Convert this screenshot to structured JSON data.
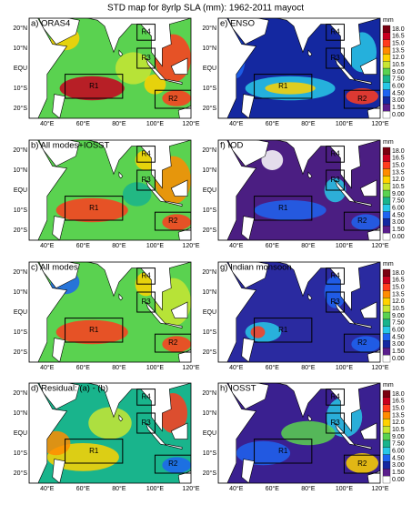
{
  "title": "STD map for 8yrlp SLA (mm): 1962-2011 mayoct",
  "panels": [
    {
      "label": "a) ORAS4"
    },
    {
      "label": "e) ENSO"
    },
    {
      "label": "b) All modes+IOSST"
    },
    {
      "label": "f) IOD"
    },
    {
      "label": "c) All modes"
    },
    {
      "label": "g) Indian monsoon"
    },
    {
      "label": "d) Residual: (a) - (b)"
    },
    {
      "label": "h) IOSST"
    }
  ],
  "regions": [
    "R1",
    "R2",
    "R3",
    "R4"
  ],
  "lat_labels": [
    "20°N",
    "10°N",
    "EQU",
    "10°S",
    "20°S"
  ],
  "lon_labels": [
    "40°E",
    "60°E",
    "80°E",
    "100°E",
    "120°E"
  ],
  "colorbar": {
    "unit": "mm",
    "labels": [
      "18.0",
      "16.5",
      "15.0",
      "13.5",
      "12.0",
      "10.5",
      "9.00",
      "7.50",
      "6.00",
      "4.50",
      "3.00",
      "1.50",
      "0.00"
    ]
  }
}
